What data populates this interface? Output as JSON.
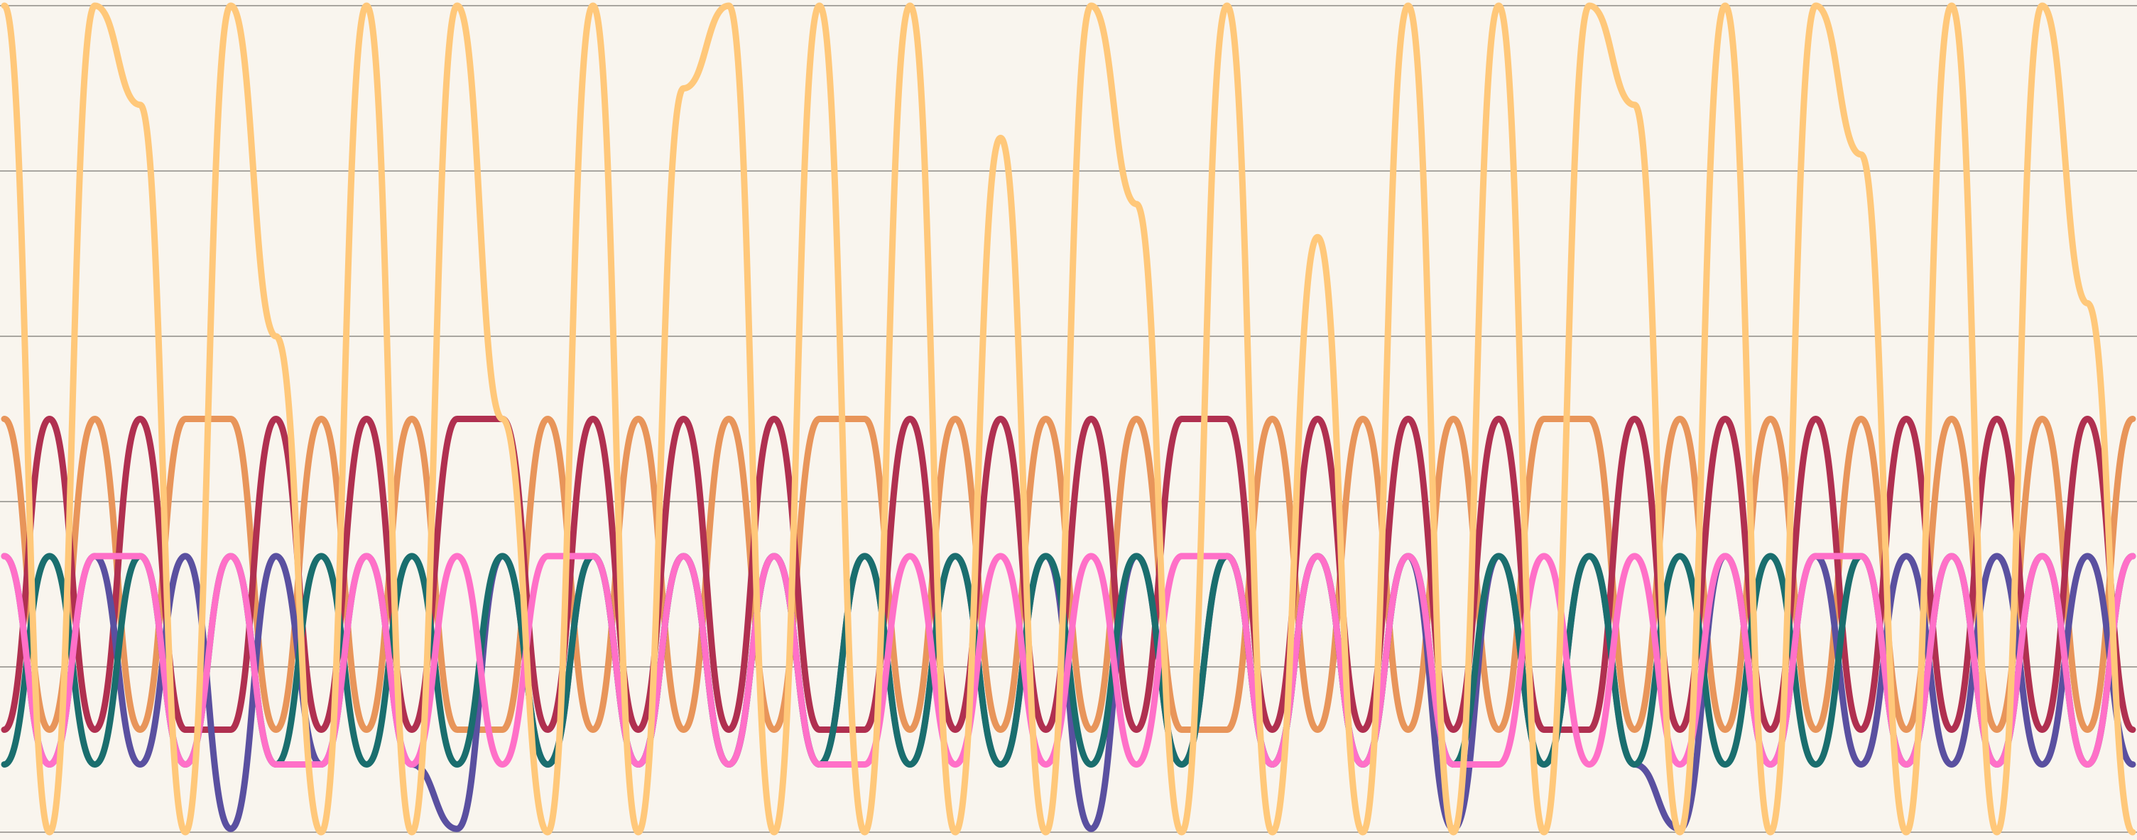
{
  "chart_data": {
    "type": "line",
    "categories": [
      null,
      null,
      null,
      null,
      null,
      null,
      null,
      null,
      null,
      null,
      null,
      null,
      null,
      null,
      null,
      null,
      null,
      null,
      null,
      null,
      null,
      null,
      null,
      null,
      null,
      null,
      null,
      null,
      null,
      null,
      null,
      null,
      null,
      null,
      null,
      null,
      null,
      null,
      null,
      null,
      null,
      null,
      null,
      null,
      null,
      null,
      null,
      null
    ],
    "ylim": [
      0,
      5
    ],
    "yticks": [
      0,
      1,
      2,
      3,
      4,
      5
    ],
    "grid": true,
    "series": [
      {
        "name": null,
        "color": "#e8955a",
        "values": [
          2.5,
          0.62,
          2.5,
          0.62,
          2.5,
          2.5,
          0.62,
          2.5,
          0.62,
          2.5,
          0.62,
          0.62,
          2.5,
          0.62,
          2.5,
          0.62,
          2.5,
          0.62,
          2.5,
          2.5,
          0.62,
          2.5,
          0.62,
          2.5,
          0.62,
          2.5,
          0.62,
          0.62,
          2.5,
          0.62,
          2.5,
          0.62,
          2.5,
          0.62,
          2.5,
          2.5,
          0.62,
          2.5,
          0.62,
          2.5,
          0.62,
          2.5,
          0.62,
          2.5,
          0.62,
          2.5,
          0.62,
          2.5
        ]
      },
      {
        "name": null,
        "color": "#b03050",
        "values": [
          0.62,
          2.5,
          0.62,
          2.5,
          0.62,
          0.62,
          2.5,
          0.62,
          2.5,
          0.62,
          2.5,
          2.5,
          0.62,
          2.5,
          0.62,
          2.5,
          0.62,
          2.5,
          0.62,
          0.62,
          2.5,
          0.62,
          2.5,
          0.62,
          2.5,
          0.62,
          2.5,
          2.5,
          0.62,
          2.5,
          0.62,
          2.5,
          0.62,
          2.5,
          0.62,
          0.62,
          2.5,
          0.62,
          2.5,
          0.62,
          2.5,
          0.62,
          2.5,
          0.62,
          2.5,
          0.62,
          2.5,
          0.62
        ]
      },
      {
        "name": null,
        "color": "#5a50a0",
        "values": [
          1.67,
          0.41,
          1.67,
          0.41,
          1.67,
          0.02,
          1.67,
          0.41,
          1.67,
          0.41,
          0.02,
          1.67,
          0.41,
          1.67,
          0.41,
          1.67,
          0.41,
          1.67,
          0.41,
          1.67,
          0.41,
          1.67,
          0.41,
          1.67,
          0.02,
          1.67,
          0.41,
          1.67,
          0.41,
          1.67,
          0.41,
          1.67,
          0.02,
          1.67,
          0.41,
          1.67,
          0.41,
          0.02,
          1.67,
          0.41,
          1.67,
          0.41,
          1.67,
          0.41,
          1.67,
          0.41,
          1.67,
          0.41
        ]
      },
      {
        "name": null,
        "color": "#1a6e6e",
        "values": [
          0.41,
          1.67,
          0.41,
          1.67,
          0.41,
          1.67,
          0.41,
          1.67,
          0.41,
          1.67,
          0.41,
          1.67,
          0.41,
          1.67,
          0.41,
          1.67,
          0.41,
          1.67,
          0.41,
          1.67,
          0.41,
          1.67,
          0.41,
          1.67,
          0.41,
          1.67,
          0.41,
          1.67,
          0.41,
          1.67,
          0.41,
          1.67,
          0.41,
          1.67,
          0.41,
          1.67,
          0.41,
          1.67,
          0.41,
          1.67,
          0.41,
          1.67,
          0.41,
          1.67,
          0.41,
          1.67,
          0.41,
          1.67
        ]
      },
      {
        "name": null,
        "color": "#ff70c8",
        "values": [
          1.67,
          0.41,
          1.67,
          1.67,
          0.41,
          1.67,
          0.41,
          0.41,
          1.67,
          0.41,
          1.67,
          0.41,
          1.67,
          1.67,
          0.41,
          1.67,
          0.41,
          1.67,
          0.41,
          0.41,
          1.67,
          0.41,
          1.67,
          0.41,
          1.67,
          0.41,
          1.67,
          1.67,
          0.41,
          1.67,
          0.41,
          1.67,
          0.41,
          0.41,
          1.67,
          0.41,
          1.67,
          0.41,
          1.67,
          0.41,
          1.67,
          1.67,
          0.41,
          1.67,
          0.41,
          1.67,
          0.41,
          1.67
        ]
      },
      {
        "name": null,
        "color": "#ffc87a",
        "values": [
          5,
          0,
          5,
          4.4,
          0,
          5,
          3,
          0,
          5,
          0,
          5,
          2.5,
          0,
          5,
          0,
          4.5,
          5,
          0,
          5,
          0,
          5,
          0,
          4.2,
          0,
          5,
          3.8,
          0,
          5,
          0,
          3.6,
          0,
          5,
          0,
          5,
          0,
          5,
          4.4,
          0,
          5,
          0,
          5,
          4.1,
          0,
          5,
          0,
          5,
          3.2,
          0
        ]
      }
    ]
  }
}
